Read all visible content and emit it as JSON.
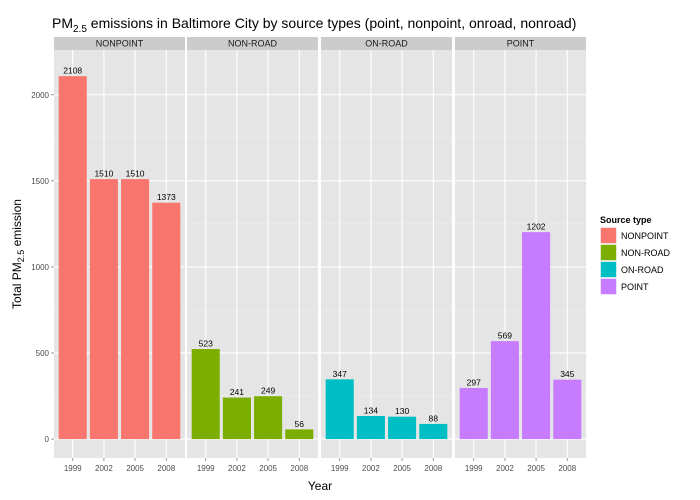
{
  "chart_data": {
    "type": "bar",
    "title": {
      "prefix": "PM",
      "subscript": "2.5",
      "suffix": " emissions in Baltimore City by source types (point, nonpoint, onroad, nonroad)"
    },
    "xlabel": "Year",
    "ylabel": {
      "prefix": "Total PM",
      "subscript": "2.5",
      "suffix": " emission"
    },
    "categories": [
      "1999",
      "2002",
      "2005",
      "2008"
    ],
    "ylim": [
      -110,
      2260
    ],
    "yticks": [
      0,
      500,
      1000,
      1500,
      2000
    ],
    "grid": true,
    "facets": [
      "NONPOINT",
      "NON-ROAD",
      "ON-ROAD",
      "POINT"
    ],
    "series": [
      {
        "name": "NONPOINT",
        "color": "#F8766D",
        "values": [
          2108,
          1510,
          1510,
          1373
        ],
        "labels": [
          "2108",
          "1510",
          "1510",
          "1373"
        ]
      },
      {
        "name": "NON-ROAD",
        "color": "#7CAE00",
        "values": [
          523,
          241,
          249,
          56
        ],
        "labels": [
          "523",
          "241",
          "249",
          "56"
        ]
      },
      {
        "name": "ON-ROAD",
        "color": "#00BFC4",
        "values": [
          347,
          134,
          130,
          88
        ],
        "labels": [
          "347",
          "134",
          "130",
          "88"
        ]
      },
      {
        "name": "POINT",
        "color": "#C77CFF",
        "values": [
          297,
          569,
          1202,
          345
        ],
        "labels": [
          "297",
          "569",
          "1202",
          "345"
        ]
      }
    ],
    "legend": {
      "title": "Source type",
      "placement": "right",
      "items": [
        "NONPOINT",
        "NON-ROAD",
        "ON-ROAD",
        "POINT"
      ]
    }
  }
}
